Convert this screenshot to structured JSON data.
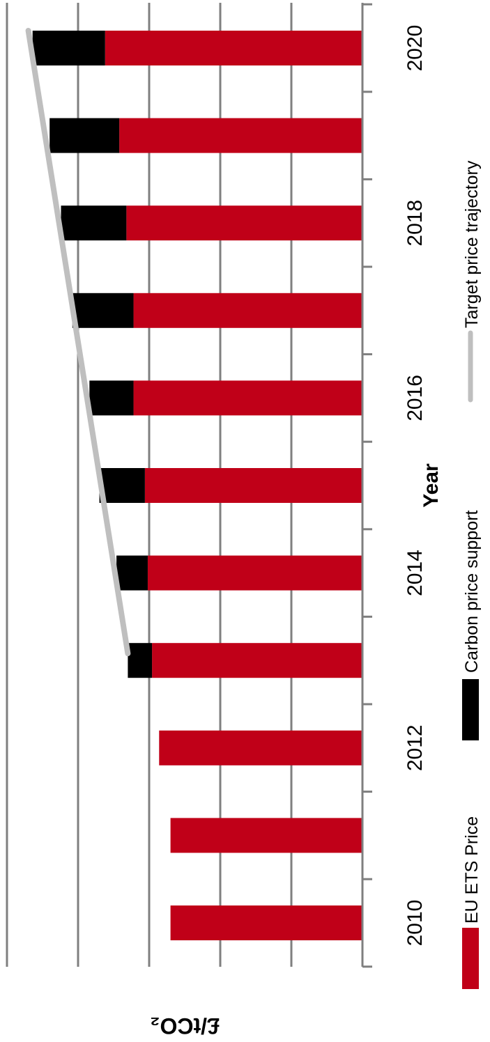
{
  "chart_data": {
    "type": "bar",
    "stacked": true,
    "categories": [
      "2010",
      "2011",
      "2012",
      "2013",
      "2014",
      "2015",
      "2016",
      "2017",
      "2018",
      "2019",
      "2020"
    ],
    "series": [
      {
        "name": "EU ETS Price",
        "color": "#c00018",
        "values": [
          13.5,
          13.5,
          14.3,
          14.8,
          15.1,
          15.3,
          16.1,
          16.1,
          16.6,
          17.1,
          18.1
        ]
      },
      {
        "name": "Carbon price support",
        "color": "#000000",
        "values": [
          0,
          0,
          0,
          1.7,
          2.2,
          3.2,
          3.1,
          4.3,
          4.6,
          4.9,
          5.1
        ]
      }
    ],
    "target_price_trajectory": {
      "name": "Target price trajectory",
      "color": "#bfbfbf",
      "x": [
        "2013",
        "2020"
      ],
      "values": [
        16.5,
        23.5
      ]
    },
    "tick_labels": [
      "2010",
      "2012",
      "2014",
      "2016",
      "2018",
      "2020"
    ],
    "xlabel": "Year",
    "ylabel": "£/tCO₂",
    "ylim": [
      0,
      25
    ],
    "grid": true,
    "legend_position": "bottom",
    "orientation": "rotated-90-clockwise"
  }
}
